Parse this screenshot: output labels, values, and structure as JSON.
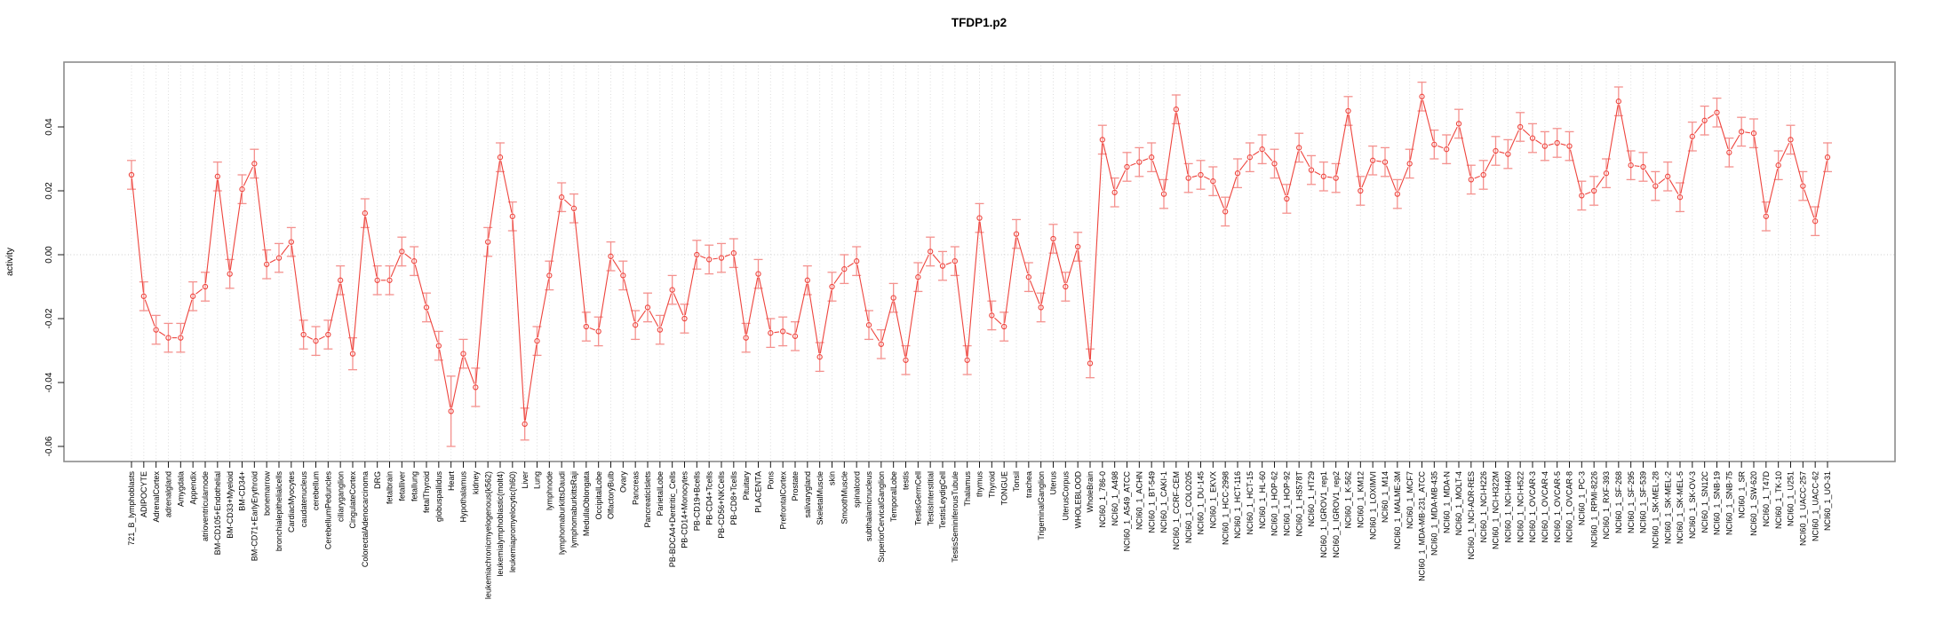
{
  "chart_data": {
    "type": "line",
    "title": "TFDP1.p2",
    "xlabel": "",
    "ylabel": "activity",
    "ylim": [
      -0.065,
      0.06
    ],
    "grid": "vertical dotted gridline per category; dotted horizontal line at zero",
    "legend": "none",
    "marker": "open-circle with symmetric error bars",
    "colors": {
      "series": "#ee443d",
      "error_bar": "#f4918e",
      "gridline": "#dcdcdc",
      "plot_border": "#8c8c8c",
      "text": "#000000",
      "background": "#ffffff"
    },
    "yticks": [
      0.04,
      0.02,
      0.0,
      -0.02,
      -0.04,
      -0.06
    ],
    "ytick_labels": [
      "0.04",
      "0.02",
      "0.00",
      "-0.02",
      "-0.04",
      "-0.06"
    ],
    "categories": [
      "721_B_lymphoblasts",
      "ADIPOCYTE",
      "AdrenalCortex",
      "adrenalgland",
      "Amygdala",
      "Appendix",
      "atrioventricularnode",
      "BM-CD105+Endothelial",
      "BM-CD33+Myeloid",
      "BM-CD34+",
      "BM-CD71+EarlyErythroid",
      "bonemarrow",
      "bronchialepithelialcells",
      "CardiacMyocytes",
      "caudatenucleus",
      "cerebellum",
      "CerebellumPeduncles",
      "ciliaryganglion",
      "CingulateCortex",
      "ColorectalAdenocarcinoma",
      "DRG",
      "fetalbrain",
      "fetalliver",
      "fetallung",
      "fetalThyroid",
      "globuspallidus",
      "Heart",
      "Hypothalamus",
      "kidney",
      "leukemiachronicmyelogenous(k562)",
      "leukemialymphoblastic(molt4)",
      "leukemiapromyelocytic(hl60)",
      "Liver",
      "Lung",
      "lymphnode",
      "lymphomaburkittsDaudi",
      "lymphomaburkittsRaji",
      "MedullaOblongata",
      "OccipitalLobe",
      "OlfactoryBulb",
      "Ovary",
      "Pancreas",
      "PancreaticIslets",
      "ParietalLobe",
      "PB-BDCA4+Dentritic_Cells",
      "PB-CD14+Monocytes",
      "PB-CD19+Bcells",
      "PB-CD4+Tcells",
      "PB-CD56+NKCells",
      "PB-CD8+Tcells",
      "Pituitary",
      "PLACENTA",
      "Pons",
      "PrefrontalCortex",
      "Prostate",
      "salivarygland",
      "SkeletalMuscle",
      "skin",
      "SmoothMuscle",
      "spinalcord",
      "subthalamicnucleus",
      "SuperiorCervicalGanglion",
      "TemporalLobe",
      "testis",
      "TestisGermCell",
      "TestisInterstitial",
      "TestisLeydigCell",
      "TestisSeminiferousTubule",
      "Thalamus",
      "thymus",
      "Thyroid",
      "TONGUE",
      "Tonsil",
      "trachea",
      "TrigeminalGanglion",
      "Uterus",
      "UterusCorpus",
      "WHOLEBLOOD",
      "WholeBrain",
      "NCI60_1_786-0",
      "NCI60_1_A498",
      "NCI60_1_A549_ATCC",
      "NCI60_1_ACHN",
      "NCI60_1_BT-549",
      "NCI60_1_CAKI-1",
      "NCI60_1_CCRF-CEM",
      "NCI60_1_COLO205",
      "NCI60_1_DU-145",
      "NCI60_1_EKVX",
      "NCI60_1_HCC-2998",
      "NCI60_1_HCT-116",
      "NCI60_1_HCT-15",
      "NCI60_1_HL-60",
      "NCI60_1_HOP-62",
      "NCI60_1_HOP-92",
      "NCI60_1_HS578T",
      "NCI60_1_HT29",
      "NCI60_1_IGROV1_rep1",
      "NCI60_1_IGROV1_rep2",
      "NCI60_1_K-562",
      "NCI60_1_KM12",
      "NCI60_1_LOXIMVI",
      "NCI60_1_M14",
      "NCI60_1_MALME-3M",
      "NCI60_1_MCF7",
      "NCI60_1_MDA-MB-231_ATCC",
      "NCI60_1_MDA-MB-435",
      "NCI60_1_MDA-N",
      "NCI60_1_MOLT-4",
      "NCI60_1_NCI-ADR-RES",
      "NCI60_1_NCI-H226",
      "NCI60_1_NCI-H322M",
      "NCI60_1_NCI-H460",
      "NCI60_1_NCI-H522",
      "NCI60_1_OVCAR-3",
      "NCI60_1_OVCAR-4",
      "NCI60_1_OVCAR-5",
      "NCI60_1_OVCAR-8",
      "NCI60_1_PC-3",
      "NCI60_1_RPMI-8226",
      "NCI60_1_RXF-393",
      "NCI60_1_SF-268",
      "NCI60_1_SF-295",
      "NCI60_1_SF-539",
      "NCI60_1_SK-MEL-28",
      "NCI60_1_SK-MEL-2",
      "NCI60_1_SK-MEL-5",
      "NCI60_1_SK-OV-3",
      "NCI60_1_SN12C",
      "NCI60_1_SNB-19",
      "NCI60_1_SNB-75",
      "NCI60_1_SR",
      "NCI60_1_SW-620",
      "NCI60_1_T47D",
      "NCI60_1_TK-10",
      "NCI60_1_U251",
      "NCI60_1_UACC-257",
      "NCI60_1_UACC-62",
      "NCI60_1_UO-31"
    ],
    "series": [
      {
        "name": "activity",
        "values": [
          0.025,
          -0.013,
          -0.0235,
          -0.026,
          -0.026,
          -0.013,
          -0.01,
          0.0245,
          -0.006,
          0.0205,
          0.0285,
          -0.003,
          -0.001,
          0.004,
          -0.025,
          -0.027,
          -0.025,
          -0.008,
          -0.031,
          0.013,
          -0.008,
          -0.008,
          0.001,
          -0.002,
          -0.0165,
          -0.0285,
          -0.049,
          -0.031,
          -0.0415,
          0.004,
          0.0305,
          0.012,
          -0.053,
          -0.027,
          -0.0065,
          0.018,
          0.0145,
          -0.0225,
          -0.024,
          -0.0005,
          -0.0065,
          -0.022,
          -0.0165,
          -0.0235,
          -0.011,
          -0.02,
          0.0,
          -0.0015,
          -0.001,
          0.0005,
          -0.026,
          -0.006,
          -0.0245,
          -0.024,
          -0.0255,
          -0.008,
          -0.032,
          -0.01,
          -0.0045,
          -0.002,
          -0.022,
          -0.028,
          -0.0135,
          -0.033,
          -0.007,
          0.001,
          -0.0035,
          -0.002,
          -0.033,
          0.0115,
          -0.019,
          -0.0225,
          0.0065,
          -0.007,
          -0.0165,
          0.005,
          -0.01,
          0.0025,
          -0.034,
          0.036,
          0.0195,
          0.0275,
          0.029,
          0.0305,
          0.019,
          0.0455,
          0.024,
          0.025,
          0.023,
          0.0135,
          0.0255,
          0.0305,
          0.033,
          0.0285,
          0.0175,
          0.0335,
          0.0265,
          0.0245,
          0.024,
          0.045,
          0.02,
          0.0295,
          0.029,
          0.019,
          0.0285,
          0.0495,
          0.0345,
          0.033,
          0.041,
          0.0235,
          0.025,
          0.0325,
          0.0315,
          0.04,
          0.0365,
          0.034,
          0.035,
          0.034,
          0.0185,
          0.02,
          0.0255,
          0.048,
          0.028,
          0.0275,
          0.0215,
          0.0245,
          0.018,
          0.037,
          0.042,
          0.0445,
          0.032,
          0.0385,
          0.038,
          0.012,
          0.028,
          0.036,
          0.0215,
          0.0105,
          0.0305
        ]
      }
    ],
    "error_bars": {
      "default_se": 0.0045,
      "overrides": {
        "Heart": 0.011,
        "kidney": 0.006,
        "Liver": 0.005,
        "CingulateCortex": 0.005
      }
    }
  }
}
